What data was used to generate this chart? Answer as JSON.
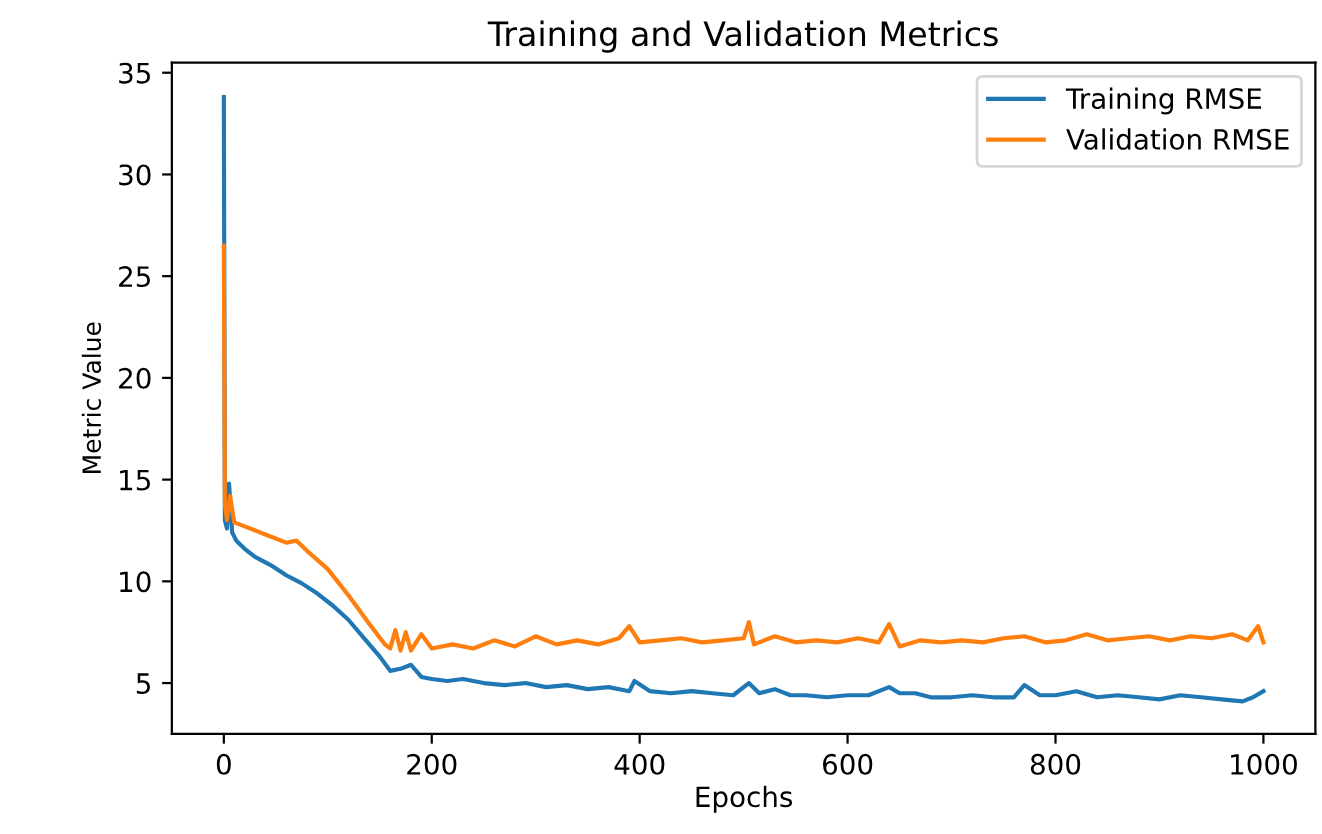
{
  "chart_data": {
    "type": "line",
    "title": "Training and Validation Metrics",
    "xlabel": "Epochs",
    "ylabel": "Metric Value",
    "xlim": [
      -50,
      1050
    ],
    "xticks": [
      0,
      200,
      400,
      600,
      800,
      1000
    ],
    "ylim": [
      2.5,
      35.5
    ],
    "yticks": [
      5,
      10,
      15,
      20,
      25,
      30,
      35
    ],
    "grid": false,
    "legend": "top right",
    "line_style": "solid",
    "marker": "none",
    "series": [
      {
        "name": "Training RMSE",
        "color": "#1f77b4",
        "x": [
          0,
          1,
          3,
          5,
          8,
          12,
          20,
          30,
          45,
          60,
          75,
          90,
          105,
          120,
          135,
          150,
          160,
          170,
          180,
          190,
          200,
          215,
          230,
          250,
          270,
          290,
          310,
          330,
          350,
          370,
          390,
          395,
          410,
          430,
          450,
          470,
          490,
          505,
          515,
          530,
          545,
          560,
          580,
          600,
          620,
          640,
          650,
          665,
          680,
          700,
          720,
          740,
          760,
          770,
          785,
          800,
          820,
          840,
          860,
          880,
          900,
          920,
          940,
          960,
          980,
          990,
          1000
        ],
        "values": [
          33.8,
          13.0,
          12.6,
          14.8,
          12.4,
          12.0,
          11.6,
          11.2,
          10.8,
          10.3,
          9.9,
          9.4,
          8.8,
          8.1,
          7.2,
          6.3,
          5.6,
          5.7,
          5.9,
          5.3,
          5.2,
          5.1,
          5.2,
          5.0,
          4.9,
          5.0,
          4.8,
          4.9,
          4.7,
          4.8,
          4.6,
          5.1,
          4.6,
          4.5,
          4.6,
          4.5,
          4.4,
          5.0,
          4.5,
          4.7,
          4.4,
          4.4,
          4.3,
          4.4,
          4.4,
          4.8,
          4.5,
          4.5,
          4.3,
          4.3,
          4.4,
          4.3,
          4.3,
          4.9,
          4.4,
          4.4,
          4.6,
          4.3,
          4.4,
          4.3,
          4.2,
          4.4,
          4.3,
          4.2,
          4.1,
          4.3,
          4.6
        ]
      },
      {
        "name": "Validation RMSE",
        "color": "#ff7f0e",
        "x": [
          0,
          1,
          3,
          6,
          10,
          20,
          40,
          60,
          70,
          80,
          100,
          120,
          140,
          155,
          160,
          165,
          170,
          175,
          180,
          190,
          200,
          220,
          240,
          260,
          280,
          300,
          320,
          340,
          360,
          380,
          390,
          400,
          420,
          440,
          460,
          480,
          500,
          505,
          510,
          530,
          550,
          570,
          590,
          610,
          630,
          640,
          650,
          670,
          690,
          710,
          730,
          750,
          770,
          790,
          810,
          830,
          850,
          870,
          890,
          910,
          930,
          950,
          970,
          985,
          995,
          1000
        ],
        "values": [
          26.5,
          13.8,
          13.0,
          14.2,
          12.9,
          12.7,
          12.3,
          11.9,
          12.0,
          11.5,
          10.6,
          9.3,
          7.9,
          6.9,
          6.7,
          7.6,
          6.6,
          7.5,
          6.6,
          7.4,
          6.7,
          6.9,
          6.7,
          7.1,
          6.8,
          7.3,
          6.9,
          7.1,
          6.9,
          7.2,
          7.8,
          7.0,
          7.1,
          7.2,
          7.0,
          7.1,
          7.2,
          8.0,
          6.9,
          7.3,
          7.0,
          7.1,
          7.0,
          7.2,
          7.0,
          7.9,
          6.8,
          7.1,
          7.0,
          7.1,
          7.0,
          7.2,
          7.3,
          7.0,
          7.1,
          7.4,
          7.1,
          7.2,
          7.3,
          7.1,
          7.3,
          7.2,
          7.4,
          7.1,
          7.8,
          7.0
        ]
      }
    ]
  }
}
